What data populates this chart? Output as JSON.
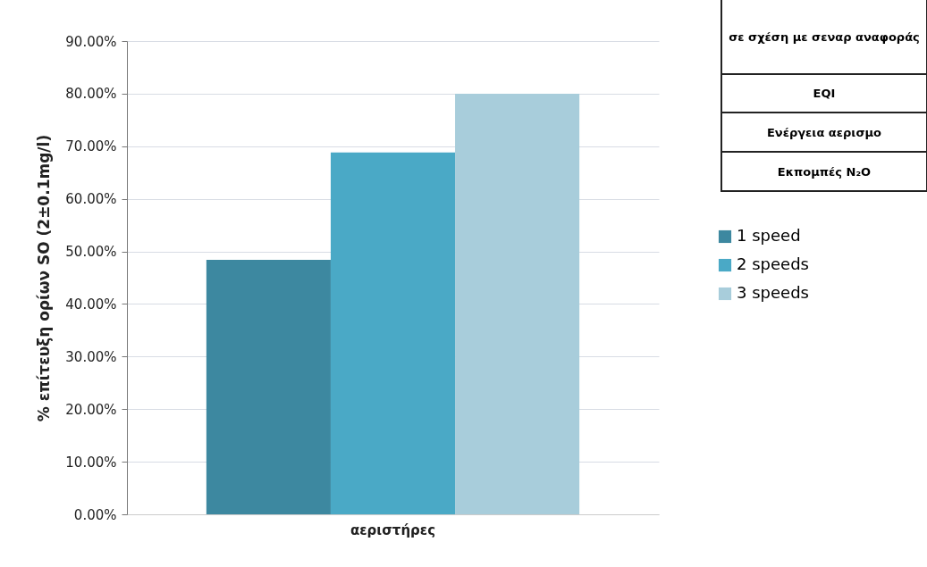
{
  "chart_data": {
    "type": "bar",
    "xlabel": null,
    "ylabel": "% επίτευξη ορίων SO (2±0.1mg/l)",
    "categories": [
      "αεριστήρες"
    ],
    "series": [
      {
        "name": "1 speed",
        "color": "#3d88a0",
        "values": [
          48.4
        ]
      },
      {
        "name": "2 speeds",
        "color": "#4aa9c6",
        "values": [
          68.8
        ]
      },
      {
        "name": "3 speeds",
        "color": "#a8cddb",
        "values": [
          80.0
        ]
      }
    ],
    "ylim": [
      0,
      90
    ],
    "yticks": [
      {
        "value": 0,
        "label": "0.00%"
      },
      {
        "value": 10,
        "label": "10.00%"
      },
      {
        "value": 20,
        "label": "20.00%"
      },
      {
        "value": 30,
        "label": "30.00%"
      },
      {
        "value": 40,
        "label": "40.00%"
      },
      {
        "value": 50,
        "label": "50.00%"
      },
      {
        "value": 60,
        "label": "60.00%"
      },
      {
        "value": 70,
        "label": "70.00%"
      },
      {
        "value": 80,
        "label": "80.00%"
      },
      {
        "value": 90,
        "label": "90.00%"
      }
    ],
    "grid": "y",
    "legend": "right",
    "annotations": [
      "σε σχέση με σεναρ αναφοράς",
      "EQI",
      "Ενέργεια αερισμο",
      "Εκπομπές N₂O"
    ]
  }
}
